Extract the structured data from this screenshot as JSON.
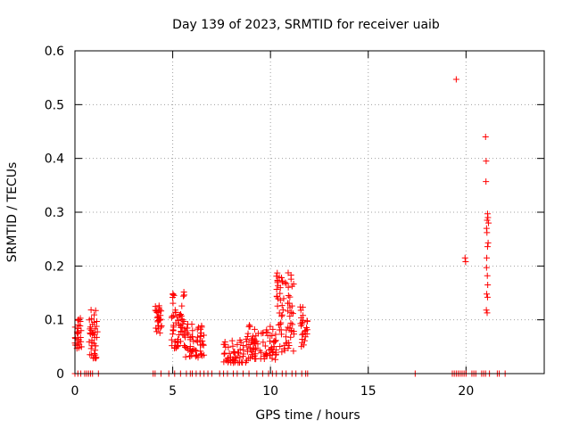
{
  "chart_data": {
    "type": "scatter",
    "title": "Day 139 of 2023, SRMTID for receiver uaib",
    "xlabel": "GPS time / hours",
    "ylabel": "SRMTID / TECUs",
    "xlim": [
      0,
      24
    ],
    "ylim": [
      0,
      0.6
    ],
    "x_ticks": [
      "0",
      "5",
      "10",
      "15",
      "20"
    ],
    "y_ticks": [
      "0",
      "0.1",
      "0.2",
      "0.3",
      "0.4",
      "0.5",
      "0.6"
    ],
    "grid": true,
    "marker_color": "#ff0000",
    "series": [
      {
        "name": "SRMTID",
        "marker": "+",
        "clusters": [
          {
            "x_start": 0.0,
            "x_end": 0.35,
            "y_min": 0.045,
            "y_max": 0.105,
            "count": 28
          },
          {
            "x_start": 0.7,
            "x_end": 1.15,
            "y_min": 0.028,
            "y_max": 0.122,
            "count": 40
          },
          {
            "x_start": 4.1,
            "x_end": 4.45,
            "y_min": 0.075,
            "y_max": 0.132,
            "count": 28
          },
          {
            "x_start": 4.9,
            "x_end": 5.6,
            "y_min": 0.045,
            "y_max": 0.152,
            "count": 55
          },
          {
            "x_start": 5.6,
            "x_end": 6.6,
            "y_min": 0.03,
            "y_max": 0.092,
            "count": 60
          },
          {
            "x_start": 7.6,
            "x_end": 8.8,
            "y_min": 0.02,
            "y_max": 0.065,
            "count": 50
          },
          {
            "x_start": 8.8,
            "x_end": 10.3,
            "y_min": 0.025,
            "y_max": 0.09,
            "count": 80
          },
          {
            "x_start": 10.3,
            "x_end": 11.2,
            "y_min": 0.04,
            "y_max": 0.192,
            "count": 70
          },
          {
            "x_start": 11.5,
            "x_end": 11.9,
            "y_min": 0.05,
            "y_max": 0.13,
            "count": 25
          }
        ],
        "points": [
          [
            19.5,
            0.547
          ],
          [
            19.95,
            0.215
          ],
          [
            19.98,
            0.208
          ],
          [
            21.0,
            0.44
          ],
          [
            21.03,
            0.395
          ],
          [
            21.02,
            0.357
          ],
          [
            21.1,
            0.297
          ],
          [
            21.12,
            0.29
          ],
          [
            21.08,
            0.285
          ],
          [
            21.15,
            0.28
          ],
          [
            21.05,
            0.27
          ],
          [
            21.07,
            0.262
          ],
          [
            21.13,
            0.243
          ],
          [
            21.1,
            0.236
          ],
          [
            21.06,
            0.215
          ],
          [
            21.05,
            0.197
          ],
          [
            21.09,
            0.182
          ],
          [
            21.11,
            0.165
          ],
          [
            21.06,
            0.148
          ],
          [
            21.1,
            0.142
          ],
          [
            21.04,
            0.118
          ],
          [
            21.08,
            0.113
          ]
        ],
        "zero_points": [
          0.0,
          0.15,
          0.3,
          0.5,
          0.6,
          0.7,
          0.8,
          0.9,
          1.2,
          4.0,
          4.1,
          4.4,
          4.8,
          5.1,
          5.4,
          5.7,
          5.9,
          6.0,
          6.2,
          6.4,
          6.6,
          6.8,
          7.0,
          7.4,
          7.6,
          7.8,
          8.1,
          8.3,
          8.6,
          8.9,
          9.3,
          9.6,
          9.9,
          10.1,
          10.3,
          10.6,
          10.8,
          11.1,
          11.3,
          11.6,
          11.8,
          11.9,
          17.4,
          19.3,
          19.4,
          19.5,
          19.6,
          19.7,
          19.8,
          19.9,
          20.0,
          20.3,
          20.4,
          20.5,
          20.8,
          20.9,
          21.0,
          21.2,
          21.6,
          21.7,
          22.0
        ]
      }
    ]
  }
}
